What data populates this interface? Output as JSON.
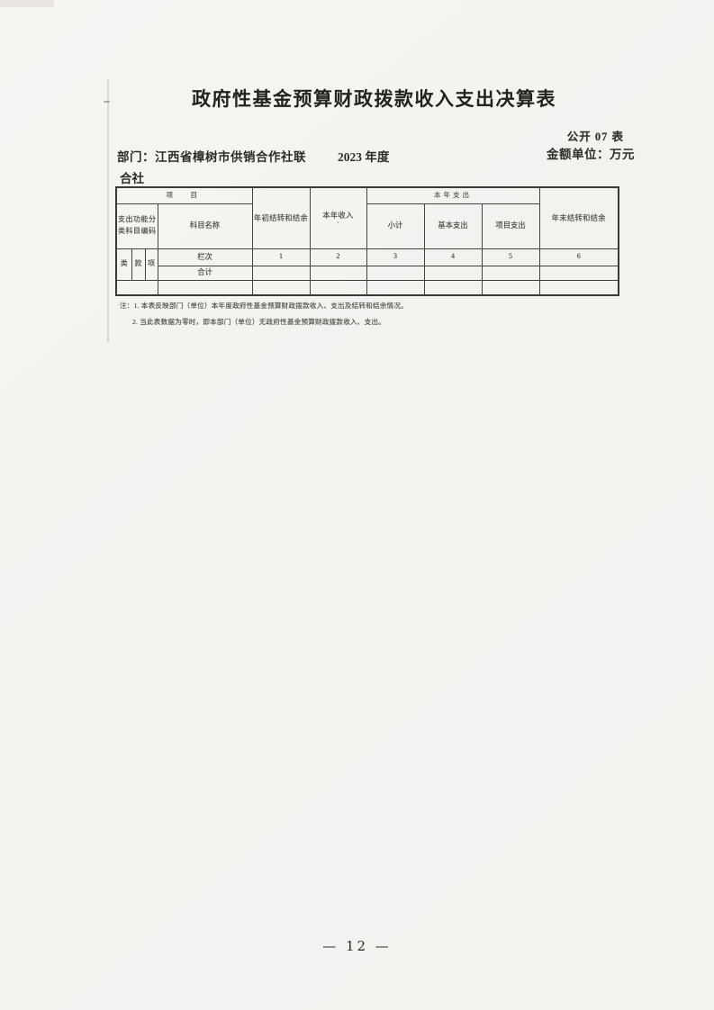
{
  "page": {
    "title": "政府性基金预算财政拨款收入支出决算表",
    "form_no": "公开 07 表",
    "department": "部门：江西省樟树市供销合作社联",
    "department_wrap": "合社",
    "fiscal_year": "2023 年度",
    "amount_unit": "金额单位：万元",
    "page_number": "— 12 —"
  },
  "colors": {
    "paper": "#f5f3f0",
    "ink": "#3f3d39",
    "table_border": "#45423d"
  },
  "table": {
    "header": {
      "project_group": "项　目",
      "func_code": "支出功能分类科目编码",
      "subject_name": "科目名称",
      "begin_balance": "年初结转和结余",
      "year_income": "本年收入",
      "income_mark": "·",
      "year_expense_group": "本年支出",
      "subtotal": "小计",
      "basic_expense": "基本支出",
      "project_expense": "项目支出",
      "end_balance": "年末结转和结余",
      "class_label": "类",
      "section_label": "款",
      "item_label": "项",
      "column_label": "栏次",
      "column_numbers": [
        "1",
        "2",
        "3",
        "4",
        "5",
        "6"
      ]
    },
    "rows": [
      {
        "name": "合计",
        "values": [
          "",
          "",
          "",
          "",
          "",
          ""
        ]
      },
      {
        "name": "",
        "values": [
          "",
          "",
          "",
          "",
          "",
          ""
        ]
      }
    ]
  },
  "notes": {
    "line1": "注：1. 本表反映部门（单位）本年度政府性基金预算财政拨款收入、支出及结转和结余情况。",
    "line2": "2. 当此表数据为零时，即本部门（单位）无政府性基金预算财政拨款收入、支出。"
  }
}
